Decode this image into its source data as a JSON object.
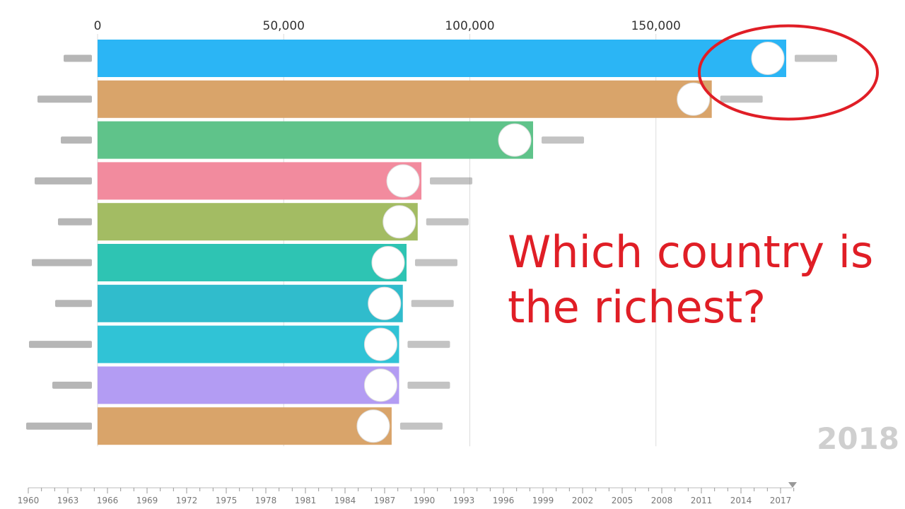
{
  "chart_data": {
    "type": "bar",
    "orientation": "horizontal",
    "xlim": [
      0,
      185000
    ],
    "x_ticks": [
      "0",
      "50,000",
      "100,000",
      "150,000"
    ],
    "x_tick_values": [
      0,
      50000,
      100000,
      150000
    ],
    "values": [
      185000,
      165000,
      117000,
      87000,
      86000,
      83000,
      82000,
      81000,
      81000,
      79000
    ],
    "bar_colors": [
      "#2bb5f5",
      "#d9a46a",
      "#5fc38a",
      "#f28b9e",
      "#a3bc63",
      "#2ec4b3",
      "#30bccc",
      "#30c3d6",
      "#b39cf3",
      "#d9a46a"
    ],
    "grid": true
  },
  "overlay": {
    "question": "Which country is the richest?",
    "year": "2018",
    "highlight_color": "#e01e26"
  },
  "timeline": {
    "labels": [
      "1960",
      "1963",
      "1966",
      "1969",
      "1972",
      "1975",
      "1978",
      "1981",
      "1984",
      "1987",
      "1990",
      "1993",
      "1996",
      "1999",
      "2002",
      "2005",
      "2008",
      "2011",
      "2014",
      "2017"
    ],
    "marker_color": "#999999"
  }
}
